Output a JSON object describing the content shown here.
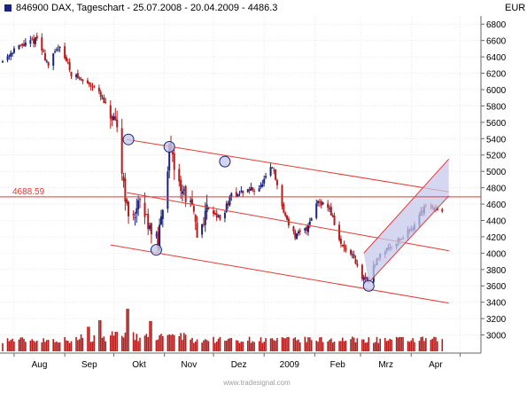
{
  "header": {
    "symbol_id": "846900",
    "title_text": "DAX, Tageschart - 25.07.2008 - 20.04.2009 - 4486.3",
    "currency": "EUR",
    "accent_color": "#1a237e"
  },
  "footer": {
    "watermark": "www.tradesignal.com"
  },
  "chart_data": {
    "type": "candlestick",
    "title": "DAX, Tageschart - 25.07.2008 - 20.04.2009 - 4486.3",
    "x_tick_labels": [
      "Aug",
      "Sep",
      "Okt",
      "Nov",
      "Dez",
      "2009",
      "Feb",
      "Mrz",
      "Apr"
    ],
    "y_tick_labels": [
      "3000",
      "3200",
      "3400",
      "3600",
      "3800",
      "4000",
      "4200",
      "4400",
      "4600",
      "4800",
      "5000",
      "5200",
      "5400",
      "5600",
      "5800",
      "6000",
      "6200",
      "6400",
      "6600",
      "6800"
    ],
    "ylim": [
      2800,
      6900
    ],
    "grid": true,
    "up_color": "#1a237e",
    "down_color": "#b71c1c",
    "volume_color": "#b71c1c",
    "horizontal_line": {
      "label": "4688.59",
      "value": 4688.59,
      "color": "#e53935"
    },
    "channel_upper": {
      "from": [
        "2008-10-09",
        5390
      ],
      "to": [
        "2009-04-24",
        4750
      ]
    },
    "channel_mid": {
      "from": [
        "2008-10-09",
        4740
      ],
      "to": [
        "2009-04-24",
        4030
      ]
    },
    "channel_lower": {
      "from": [
        "2008-09-29",
        4100
      ],
      "to": [
        "2009-04-24",
        3390
      ]
    },
    "uptrend_channel": {
      "lower": [
        [
          "2009-03-06",
          3640
        ],
        [
          "2009-04-24",
          4700
        ]
      ],
      "upper": [
        [
          "2009-03-03",
          4000
        ],
        [
          "2009-04-24",
          5150
        ]
      ]
    },
    "pivot_markers": [
      {
        "date": "2008-10-10",
        "value": 5390
      },
      {
        "date": "2008-10-27",
        "value": 4040
      },
      {
        "date": "2008-11-04",
        "value": 5300
      },
      {
        "date": "2008-12-08",
        "value": 5120
      },
      {
        "date": "2009-03-06",
        "value": 3600
      }
    ],
    "anchors": [
      [
        "2008-07-25",
        6350
      ],
      [
        "2008-08-01",
        6500
      ],
      [
        "2008-08-08",
        6550
      ],
      [
        "2008-08-15",
        6620
      ],
      [
        "2008-08-22",
        6300
      ],
      [
        "2008-08-29",
        6550
      ],
      [
        "2008-09-05",
        6200
      ],
      [
        "2008-09-12",
        6100
      ],
      [
        "2008-09-19",
        6050
      ],
      [
        "2008-09-26",
        5800
      ],
      [
        "2008-10-03",
        5500
      ],
      [
        "2008-10-10",
        4400
      ],
      [
        "2008-10-17",
        4600
      ],
      [
        "2008-10-24",
        4300
      ],
      [
        "2008-10-28",
        4100
      ],
      [
        "2008-11-04",
        5250
      ],
      [
        "2008-11-11",
        4800
      ],
      [
        "2008-11-18",
        4550
      ],
      [
        "2008-11-21",
        4200
      ],
      [
        "2008-11-28",
        4600
      ],
      [
        "2008-12-05",
        4400
      ],
      [
        "2008-12-12",
        4700
      ],
      [
        "2008-12-19",
        4750
      ],
      [
        "2008-12-30",
        4810
      ],
      [
        "2009-01-06",
        5050
      ],
      [
        "2009-01-13",
        4500
      ],
      [
        "2009-01-20",
        4200
      ],
      [
        "2009-01-27",
        4300
      ],
      [
        "2009-02-03",
        4650
      ],
      [
        "2009-02-10",
        4550
      ],
      [
        "2009-02-17",
        4100
      ],
      [
        "2009-02-24",
        3950
      ],
      [
        "2009-03-02",
        3700
      ],
      [
        "2009-03-06",
        3680
      ],
      [
        "2009-03-13",
        4000
      ],
      [
        "2009-03-20",
        4100
      ],
      [
        "2009-03-27",
        4200
      ],
      [
        "2009-04-03",
        4350
      ],
      [
        "2009-04-10",
        4600
      ],
      [
        "2009-04-17",
        4550
      ],
      [
        "2009-04-20",
        4486
      ]
    ],
    "volume_events": [
      {
        "date": "2008-09-15",
        "value": 3100
      },
      {
        "date": "2008-09-22",
        "value": 3180
      },
      {
        "date": "2008-10-10",
        "value": 3320
      },
      {
        "date": "2008-10-24",
        "value": 3170
      }
    ]
  }
}
